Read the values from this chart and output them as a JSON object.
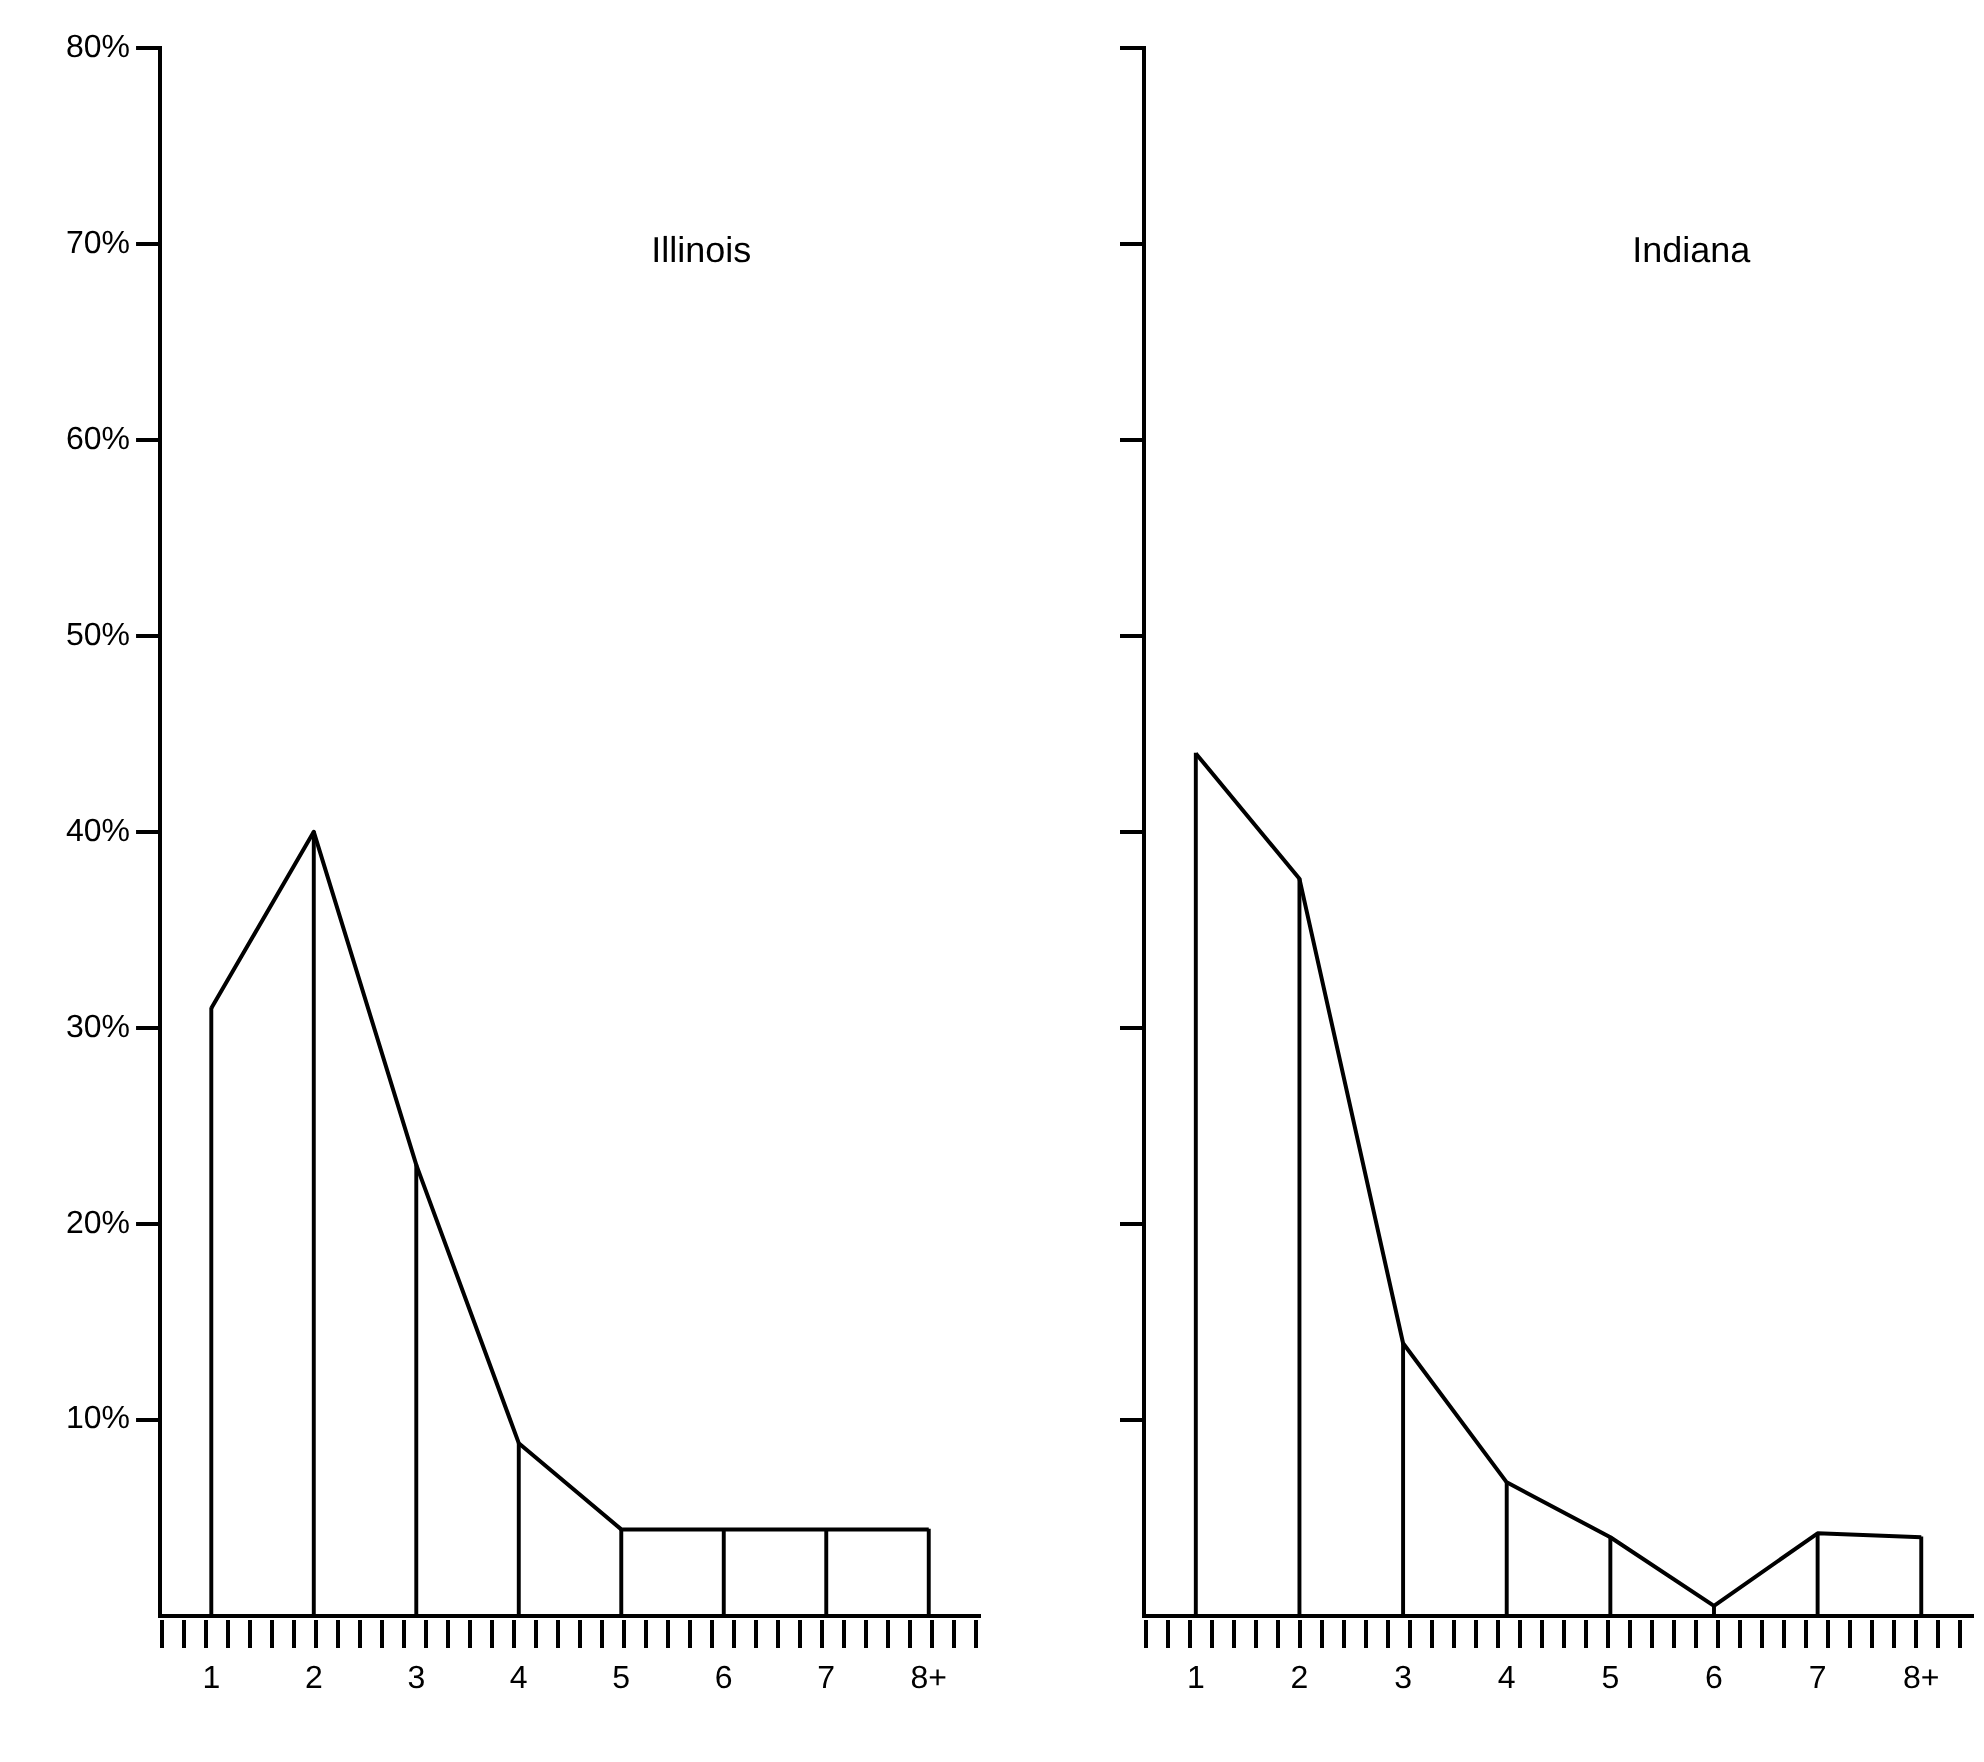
{
  "chart_data": [
    {
      "type": "line",
      "title": "Illinois",
      "categories": [
        "1",
        "2",
        "3",
        "4",
        "5",
        "6",
        "7",
        "8+"
      ],
      "series": [
        {
          "color": "#000000",
          "values": [
            31,
            40,
            23,
            8.8,
            4.4,
            4.4,
            4.4,
            4.4
          ]
        },
        {
          "type": "bar",
          "color": "#000000",
          "values": [
            31,
            40,
            23,
            8.8,
            4.4,
            4.4,
            4.4,
            4.4
          ]
        }
      ],
      "ylim": [
        0,
        80
      ],
      "yticks": [
        {
          "value": 10,
          "label": "10%"
        },
        {
          "value": 20,
          "label": "20%"
        },
        {
          "value": 30,
          "label": "30%"
        },
        {
          "value": 40,
          "label": "40%"
        },
        {
          "value": 50,
          "label": "50%"
        },
        {
          "value": 60,
          "label": "60%"
        },
        {
          "value": 70,
          "label": "70%"
        },
        {
          "value": 80,
          "label": "80%"
        }
      ],
      "grid": false,
      "legend": false,
      "marker": "none"
    },
    {
      "type": "line",
      "title": "Indiana",
      "categories": [
        "1",
        "2",
        "3",
        "4",
        "5",
        "6",
        "7",
        "8+"
      ],
      "series": [
        {
          "color": "#000000",
          "values": [
            44,
            37.6,
            13.9,
            6.8,
            4.0,
            0.5,
            4.2,
            4.0
          ]
        },
        {
          "type": "bar",
          "color": "#000000",
          "values": [
            44,
            37.6,
            13.9,
            6.8,
            4.0,
            0.5,
            4.2,
            4.0
          ]
        }
      ],
      "ylim": [
        0,
        80
      ],
      "yticks": [
        {
          "value": 10,
          "label": null
        },
        {
          "value": 20,
          "label": null
        },
        {
          "value": 30,
          "label": null
        },
        {
          "value": 40,
          "label": null
        },
        {
          "value": 50,
          "label": null
        },
        {
          "value": 60,
          "label": null
        },
        {
          "value": 70,
          "label": null
        },
        {
          "value": 80,
          "label": null
        }
      ],
      "tick_labels": "x",
      "grid": false,
      "legend": false,
      "marker": "none"
    }
  ]
}
